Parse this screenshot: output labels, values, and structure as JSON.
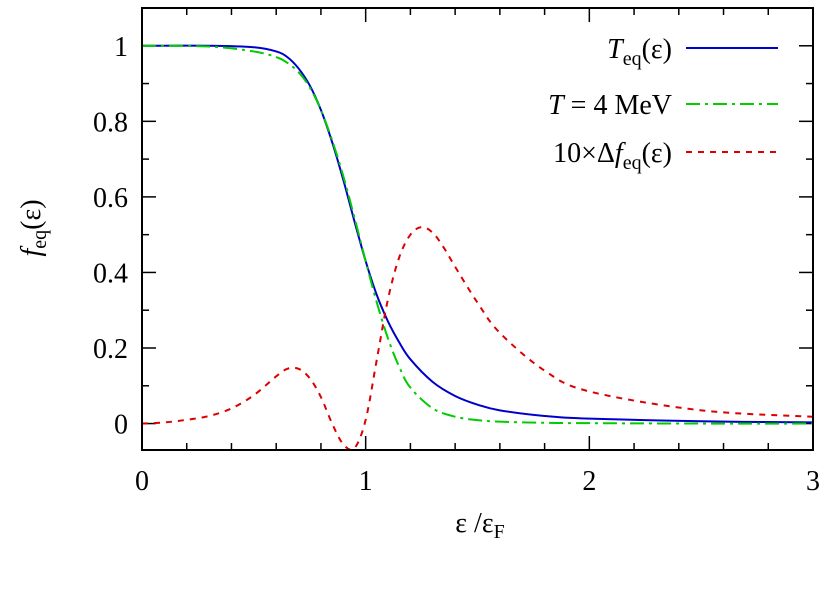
{
  "chart_data": {
    "type": "line",
    "xlabel": "ε /ε",
    "xlabel_sub": "F",
    "ylabel": "f",
    "ylabel_sub": "eq",
    "ylabel_suffix": "(ε)",
    "xlim": [
      0,
      3
    ],
    "ylim": [
      -0.07,
      1.1
    ],
    "x_ticks": [
      0,
      1,
      2,
      3
    ],
    "x_tick_labels": [
      "0",
      "1",
      "2",
      "3"
    ],
    "y_ticks": [
      0,
      0.2,
      0.4,
      0.6,
      0.8,
      1
    ],
    "y_tick_labels": [
      "0",
      "0.2",
      "0.4",
      "0.6",
      "0.8",
      "1"
    ],
    "grid": false,
    "legend_position": "top-right",
    "series": [
      {
        "name": "T_eq(ε)",
        "legend_parts": [
          "T",
          "eq",
          "(ε)"
        ],
        "color": "#0000cc",
        "dash": "solid",
        "x": [
          0,
          0.3,
          0.5,
          0.6,
          0.65,
          0.7,
          0.75,
          0.8,
          0.85,
          0.9,
          0.95,
          1.0,
          1.05,
          1.1,
          1.15,
          1.2,
          1.3,
          1.4,
          1.5,
          1.6,
          1.8,
          2.0,
          2.5,
          3.0
        ],
        "y": [
          1.0,
          1.0,
          0.996,
          0.985,
          0.97,
          0.94,
          0.895,
          0.83,
          0.745,
          0.645,
          0.535,
          0.43,
          0.34,
          0.27,
          0.215,
          0.17,
          0.11,
          0.073,
          0.05,
          0.035,
          0.02,
          0.013,
          0.006,
          0.003
        ]
      },
      {
        "name": "T = 4 MeV",
        "legend_parts": [
          "T",
          " = 4 MeV"
        ],
        "color": "#00cc00",
        "dash": "dashdot",
        "x": [
          0,
          0.3,
          0.5,
          0.6,
          0.65,
          0.7,
          0.75,
          0.8,
          0.85,
          0.9,
          0.95,
          1.0,
          1.05,
          1.1,
          1.15,
          1.2,
          1.3,
          1.4,
          1.5,
          1.6,
          1.8,
          2.0,
          2.5,
          3.0
        ],
        "y": [
          1.0,
          0.998,
          0.985,
          0.97,
          0.955,
          0.93,
          0.89,
          0.83,
          0.75,
          0.655,
          0.545,
          0.43,
          0.32,
          0.225,
          0.15,
          0.095,
          0.04,
          0.018,
          0.009,
          0.005,
          0.002,
          0.001,
          0.0,
          0.0
        ]
      },
      {
        "name": "10×Δf_eq(ε)",
        "legend_parts": [
          "10×Δ",
          "f",
          "eq",
          "(ε)"
        ],
        "color": "#dd0000",
        "dash": "dashed",
        "x": [
          0,
          0.1,
          0.2,
          0.3,
          0.4,
          0.5,
          0.6,
          0.65,
          0.7,
          0.75,
          0.8,
          0.85,
          0.9,
          0.95,
          1.0,
          1.05,
          1.1,
          1.15,
          1.2,
          1.25,
          1.3,
          1.35,
          1.4,
          1.5,
          1.6,
          1.8,
          2.0,
          2.5,
          3.0
        ],
        "y": [
          0.0,
          0.003,
          0.01,
          0.02,
          0.04,
          0.075,
          0.125,
          0.145,
          0.145,
          0.12,
          0.07,
          0.0,
          -0.055,
          -0.065,
          0.01,
          0.17,
          0.33,
          0.44,
          0.5,
          0.52,
          0.505,
          0.465,
          0.415,
          0.32,
          0.24,
          0.14,
          0.085,
          0.035,
          0.018
        ]
      }
    ]
  }
}
